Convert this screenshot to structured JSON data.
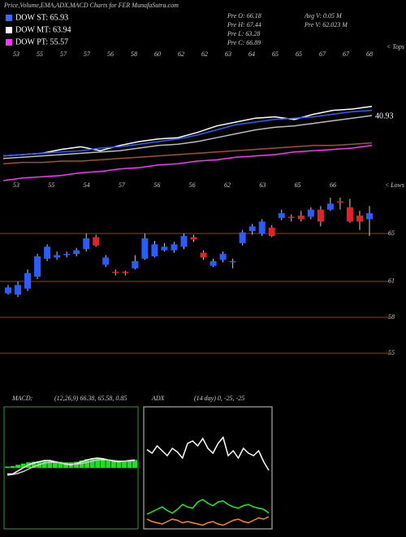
{
  "title": "Price,Volume,EMA,ADX,MACD Charts for FER MunafaSutra.com",
  "legend": [
    {
      "label": "DOW ST: 65.93",
      "color": "#3a6bff"
    },
    {
      "label": "DOW MT: 63.94",
      "color": "#ffffff"
    },
    {
      "label": "DOW PT: 55.57",
      "color": "#ff33ff"
    }
  ],
  "stats": [
    "Pre   O: 66.18",
    "Pre   H: 67.44",
    "Pre   L: 63.28",
    "Pre   C: 66.89",
    "Avg V: 0.05 M",
    "Pre   V: 62.023 M"
  ],
  "chart_data": [
    {
      "type": "line",
      "annotation": "40.93",
      "corner_label": "< Tops",
      "x_labels": [
        "53",
        "55",
        "57",
        "57",
        "56",
        "58",
        "60",
        "62",
        "62",
        "63",
        "64",
        "65",
        "65",
        "67",
        "67",
        "68"
      ],
      "ylim": [
        0,
        100
      ],
      "series": [
        {
          "color": "#ffffff",
          "values": [
            24,
            25,
            26,
            29,
            31,
            28,
            32,
            35,
            37,
            38,
            42,
            47,
            50,
            53,
            54,
            52,
            56,
            59,
            60,
            62
          ]
        },
        {
          "color": "#2f5fff",
          "values": [
            24,
            25,
            26,
            27,
            28,
            30,
            31,
            33,
            35,
            37,
            40,
            44,
            48,
            50,
            52,
            53,
            54,
            56,
            58,
            59
          ]
        },
        {
          "color": "#bbbbbb",
          "values": [
            22,
            23,
            24,
            25,
            26,
            27,
            28,
            30,
            32,
            33,
            35,
            38,
            41,
            44,
            46,
            47,
            49,
            51,
            53,
            55
          ]
        },
        {
          "color": "#a0522d",
          "values": [
            18,
            19,
            19,
            20,
            20,
            21,
            22,
            23,
            24,
            25,
            26,
            27,
            28,
            29,
            30,
            31,
            32,
            32,
            33,
            34
          ]
        },
        {
          "color": "#ff33ff",
          "values": [
            5,
            7,
            8,
            9,
            11,
            12,
            14,
            15,
            17,
            18,
            20,
            21,
            23,
            24,
            25,
            27,
            28,
            29,
            30,
            32
          ]
        }
      ]
    },
    {
      "type": "candlestick",
      "corner_label": "< Lows",
      "x_labels": [
        "53",
        "55",
        "54",
        "57",
        "56",
        "56",
        "62",
        "63",
        "65",
        "66"
      ],
      "up_color": "#2a5cff",
      "down_color": "#e02424",
      "grid_color": "#8b4513",
      "ylim": [
        51.2,
        68.2
      ],
      "yticks": [
        65,
        61,
        58,
        55
      ],
      "open": [
        60.0,
        59.9,
        60.4,
        61.4,
        62.9,
        63.0,
        63.2,
        63.3,
        63.7,
        64.7,
        62.4,
        61.8,
        61.8,
        62.1,
        62.9,
        63.1,
        63.6,
        63.6,
        63.9,
        64.7,
        63.4,
        62.3,
        62.8,
        62.6,
        64.2,
        65.2,
        65.0,
        65.5,
        66.3,
        66.4,
        66.5,
        66.4,
        67.0,
        67.0,
        67.7,
        67.2,
        66.5,
        66.2
      ],
      "high": [
        60.7,
        61.0,
        62.0,
        63.3,
        64.1,
        63.5,
        63.5,
        63.8,
        65.0,
        64.9,
        63.2,
        62.0,
        61.9,
        63.2,
        65.0,
        64.4,
        64.2,
        64.3,
        65.0,
        64.9,
        63.6,
        62.9,
        63.5,
        62.9,
        65.3,
        65.8,
        66.2,
        65.7,
        67.0,
        66.6,
        66.9,
        67.2,
        67.3,
        68.0,
        68.0,
        67.9,
        66.9,
        67.3
      ],
      "low": [
        59.9,
        59.7,
        60.2,
        61.2,
        62.7,
        62.8,
        63.0,
        63.1,
        63.5,
        63.9,
        62.2,
        61.5,
        61.5,
        62.0,
        62.8,
        63.0,
        63.5,
        63.4,
        63.7,
        64.3,
        62.8,
        62.2,
        62.6,
        62.1,
        64.0,
        64.9,
        64.8,
        64.7,
        66.1,
        66.0,
        66.0,
        66.2,
        65.6,
        66.9,
        67.0,
        65.9,
        65.3,
        64.8
      ],
      "close": [
        60.5,
        60.7,
        61.7,
        63.1,
        63.9,
        63.2,
        63.3,
        63.6,
        64.6,
        64.0,
        63.0,
        61.7,
        61.7,
        62.7,
        64.6,
        64.1,
        63.9,
        64.1,
        64.8,
        64.5,
        63.0,
        62.7,
        63.3,
        62.7,
        65.1,
        65.6,
        66.0,
        64.8,
        66.7,
        66.3,
        66.2,
        67.0,
        66.0,
        67.5,
        67.6,
        66.0,
        66.0,
        66.7
      ]
    },
    {
      "type": "macd",
      "title": "MACD:",
      "subtitle": "(12,26,9) 66.38, 65.58, 0.85",
      "border": "#2f9a2f",
      "ylim": [
        -10,
        10
      ],
      "histogram": {
        "color": "#22dd22",
        "values": [
          0.2,
          0.3,
          0.5,
          0.7,
          0.9,
          1.0,
          1.1,
          1.2,
          1.2,
          1.1,
          1.0,
          0.9,
          0.9,
          1.0,
          1.2,
          1.4,
          1.5,
          1.6,
          1.5,
          1.4,
          1.2,
          1.1,
          1.1,
          1.2,
          1.3
        ]
      },
      "series": [
        {
          "color": "#ffffff",
          "values": [
            -1,
            -1,
            -0.5,
            0,
            0.5,
            0.8,
            1,
            1.2,
            1.2,
            1,
            0.8,
            0.6,
            0.5,
            0.7,
            1,
            1.3,
            1.5,
            1.6,
            1.5,
            1.3,
            1.1,
            1,
            1.1,
            1.2,
            1.3
          ]
        },
        {
          "color": "#cccccc",
          "values": [
            -1.2,
            -1.1,
            -0.9,
            -0.6,
            -0.2,
            0.2,
            0.5,
            0.8,
            0.9,
            0.9,
            0.8,
            0.7,
            0.6,
            0.6,
            0.7,
            0.9,
            1.1,
            1.3,
            1.3,
            1.3,
            1.2,
            1.1,
            1.1,
            1.1,
            1.2
          ]
        }
      ]
    },
    {
      "type": "line",
      "title": "ADX",
      "subtitle": "(14 day) 0, -25, -25",
      "border": "#cccccc",
      "ylim": [
        0,
        100
      ],
      "series": [
        {
          "color": "#ffffff",
          "values": [
            65,
            62,
            68,
            64,
            60,
            66,
            63,
            58,
            70,
            72,
            68,
            74,
            66,
            62,
            70,
            75,
            60,
            64,
            58,
            66,
            62,
            60,
            64,
            55,
            48
          ]
        },
        {
          "color": "#22ee22",
          "values": [
            12,
            14,
            16,
            18,
            15,
            13,
            16,
            20,
            18,
            17,
            22,
            24,
            21,
            19,
            22,
            23,
            20,
            18,
            17,
            19,
            20,
            18,
            17,
            16,
            13
          ]
        },
        {
          "color": "#ff8c1a",
          "values": [
            8,
            6,
            5,
            4,
            6,
            8,
            7,
            5,
            6,
            5,
            4,
            3,
            5,
            6,
            4,
            3,
            5,
            7,
            8,
            6,
            5,
            7,
            9,
            8,
            10
          ]
        }
      ]
    }
  ]
}
